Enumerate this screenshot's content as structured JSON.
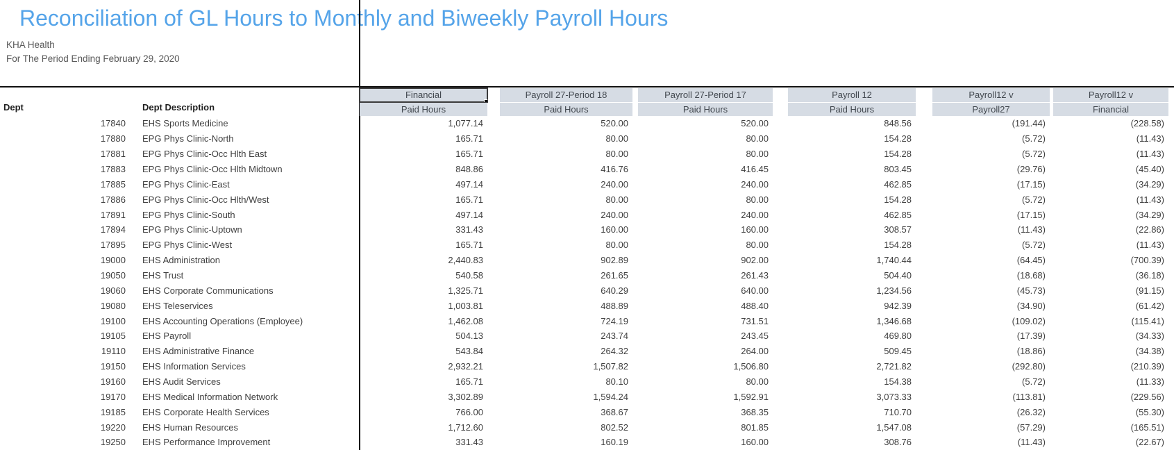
{
  "report": {
    "title": "Reconciliation of GL Hours to Monthly and Biweekly Payroll Hours",
    "company": "KHA Health",
    "period": "For The Period Ending February 29, 2020"
  },
  "colors": {
    "title_accent": "#55a4e9",
    "header_fill": "#d6dce4",
    "body_text": "#3f3f3f",
    "divider": "#101010"
  },
  "table": {
    "row_headers": {
      "dept": "Dept",
      "dept_description": "Dept Description"
    },
    "columns": [
      {
        "id": "financial",
        "line1": "Financial",
        "line2": "Paid Hours",
        "selected": true
      },
      {
        "id": "payroll27_p18",
        "line1": "Payroll 27-Period 18",
        "line2": "Paid Hours",
        "selected": false
      },
      {
        "id": "payroll27_p17",
        "line1": "Payroll 27-Period 17",
        "line2": "Paid Hours",
        "selected": false
      },
      {
        "id": "payroll12",
        "line1": "Payroll 12",
        "line2": "Paid Hours",
        "selected": false
      },
      {
        "id": "p12_v_p27",
        "line1": "Payroll12 v",
        "line2": "Payroll27",
        "selected": false
      },
      {
        "id": "p12_v_financial",
        "line1": "Payroll12 v",
        "line2": "Financial",
        "selected": false
      }
    ],
    "rows": [
      {
        "dept": "17840",
        "description": "EHS Sports Medicine",
        "values": [
          "1,077.14",
          "520.00",
          "520.00",
          "848.56",
          "(191.44)",
          "(228.58)"
        ]
      },
      {
        "dept": "17880",
        "description": "EPG Phys Clinic-North",
        "values": [
          "165.71",
          "80.00",
          "80.00",
          "154.28",
          "(5.72)",
          "(11.43)"
        ]
      },
      {
        "dept": "17881",
        "description": "EPG Phys Clinic-Occ Hlth East",
        "values": [
          "165.71",
          "80.00",
          "80.00",
          "154.28",
          "(5.72)",
          "(11.43)"
        ]
      },
      {
        "dept": "17883",
        "description": "EPG Phys Clinic-Occ Hlth Midtown",
        "values": [
          "848.86",
          "416.76",
          "416.45",
          "803.45",
          "(29.76)",
          "(45.40)"
        ]
      },
      {
        "dept": "17885",
        "description": "EPG Phys Clinic-East",
        "values": [
          "497.14",
          "240.00",
          "240.00",
          "462.85",
          "(17.15)",
          "(34.29)"
        ]
      },
      {
        "dept": "17886",
        "description": "EPG Phys Clinic-Occ Hlth/West",
        "values": [
          "165.71",
          "80.00",
          "80.00",
          "154.28",
          "(5.72)",
          "(11.43)"
        ]
      },
      {
        "dept": "17891",
        "description": "EPG Phys Clinic-South",
        "values": [
          "497.14",
          "240.00",
          "240.00",
          "462.85",
          "(17.15)",
          "(34.29)"
        ]
      },
      {
        "dept": "17894",
        "description": "EPG Phys Clinic-Uptown",
        "values": [
          "331.43",
          "160.00",
          "160.00",
          "308.57",
          "(11.43)",
          "(22.86)"
        ]
      },
      {
        "dept": "17895",
        "description": "EPG Phys Clinic-West",
        "values": [
          "165.71",
          "80.00",
          "80.00",
          "154.28",
          "(5.72)",
          "(11.43)"
        ]
      },
      {
        "dept": "19000",
        "description": "EHS Administration",
        "values": [
          "2,440.83",
          "902.89",
          "902.00",
          "1,740.44",
          "(64.45)",
          "(700.39)"
        ]
      },
      {
        "dept": "19050",
        "description": "EHS Trust",
        "values": [
          "540.58",
          "261.65",
          "261.43",
          "504.40",
          "(18.68)",
          "(36.18)"
        ]
      },
      {
        "dept": "19060",
        "description": "EHS Corporate Communications",
        "values": [
          "1,325.71",
          "640.29",
          "640.00",
          "1,234.56",
          "(45.73)",
          "(91.15)"
        ]
      },
      {
        "dept": "19080",
        "description": "EHS Teleservices",
        "values": [
          "1,003.81",
          "488.89",
          "488.40",
          "942.39",
          "(34.90)",
          "(61.42)"
        ]
      },
      {
        "dept": "19100",
        "description": "EHS Accounting Operations (Employee)",
        "values": [
          "1,462.08",
          "724.19",
          "731.51",
          "1,346.68",
          "(109.02)",
          "(115.41)"
        ]
      },
      {
        "dept": "19105",
        "description": "EHS Payroll",
        "values": [
          "504.13",
          "243.74",
          "243.45",
          "469.80",
          "(17.39)",
          "(34.33)"
        ]
      },
      {
        "dept": "19110",
        "description": "EHS Administrative Finance",
        "values": [
          "543.84",
          "264.32",
          "264.00",
          "509.45",
          "(18.86)",
          "(34.38)"
        ]
      },
      {
        "dept": "19150",
        "description": "EHS Information Services",
        "values": [
          "2,932.21",
          "1,507.82",
          "1,506.80",
          "2,721.82",
          "(292.80)",
          "(210.39)"
        ]
      },
      {
        "dept": "19160",
        "description": "EHS Audit Services",
        "values": [
          "165.71",
          "80.10",
          "80.00",
          "154.38",
          "(5.72)",
          "(11.33)"
        ]
      },
      {
        "dept": "19170",
        "description": "EHS Medical Information Network",
        "values": [
          "3,302.89",
          "1,594.24",
          "1,592.91",
          "3,073.33",
          "(113.81)",
          "(229.56)"
        ]
      },
      {
        "dept": "19185",
        "description": "EHS Corporate Health Services",
        "values": [
          "766.00",
          "368.67",
          "368.35",
          "710.70",
          "(26.32)",
          "(55.30)"
        ]
      },
      {
        "dept": "19220",
        "description": "EHS Human Resources",
        "values": [
          "1,712.60",
          "802.52",
          "801.85",
          "1,547.08",
          "(57.29)",
          "(165.51)"
        ]
      },
      {
        "dept": "19250",
        "description": "EHS Performance Improvement",
        "values": [
          "331.43",
          "160.19",
          "160.00",
          "308.76",
          "(11.43)",
          "(22.67)"
        ]
      }
    ]
  }
}
